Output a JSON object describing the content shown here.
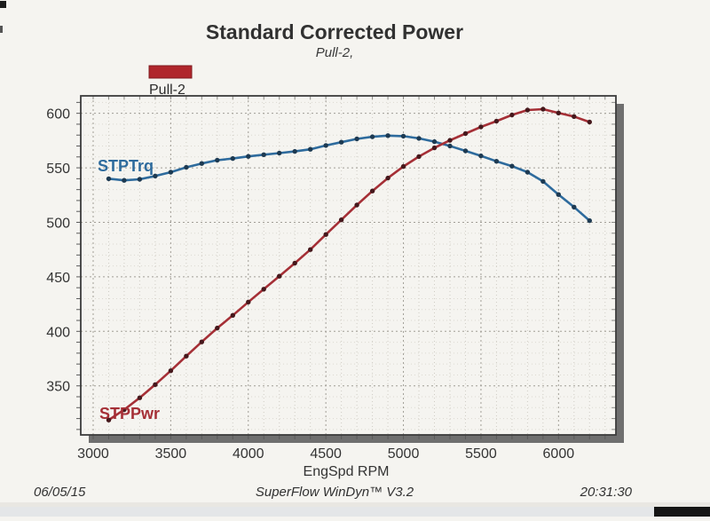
{
  "page": {
    "title": "Standard Corrected Power",
    "subtitle": "Pull-2,",
    "legend": {
      "label": "Pull-2",
      "swatch_color": "#b0262c"
    },
    "xlabel": "EngSpd RPM",
    "footer": {
      "date": "06/05/15",
      "app": "SuperFlow WinDyn™ V3.2",
      "time": "20:31:30"
    }
  },
  "chart_data": {
    "type": "line",
    "title": "Standard Corrected Power",
    "subtitle": "Pull-2,",
    "xlabel": "EngSpd RPM",
    "ylabel": "",
    "legend_entries": [
      "Pull-2"
    ],
    "legend_position": "top-left",
    "grid": "dotted major gridlines every 500 RPM / 50 units, faint minor gridlines every 100 RPM / 10 units",
    "x": [
      3100,
      3200,
      3300,
      3400,
      3500,
      3600,
      3700,
      3800,
      3900,
      4000,
      4100,
      4200,
      4300,
      4400,
      4500,
      4600,
      4700,
      4800,
      4900,
      5000,
      5100,
      5200,
      5300,
      5400,
      5500,
      5600,
      5700,
      5800,
      5900,
      6000,
      6100,
      6200
    ],
    "series": [
      {
        "name": "STPTrq",
        "color": "#2e6b9d",
        "marker_color": "#1d3a52",
        "values": [
          540.0,
          538.5,
          539.5,
          542.5,
          546.0,
          550.5,
          554.0,
          557.0,
          558.5,
          560.5,
          562.0,
          563.5,
          565.0,
          567.0,
          570.5,
          573.5,
          576.5,
          578.5,
          579.5,
          579.0,
          577.0,
          574.0,
          570.0,
          565.5,
          561.0,
          556.0,
          551.5,
          546.0,
          537.5,
          525.5,
          514.0,
          501.5
        ]
      },
      {
        "name": "STPPwr",
        "color": "#a52f36",
        "marker_color": "#46181c",
        "values": [
          318.7,
          328.1,
          339.0,
          351.2,
          363.9,
          377.3,
          390.3,
          403.0,
          414.7,
          426.9,
          438.7,
          450.6,
          462.5,
          475.0,
          488.8,
          502.3,
          515.9,
          528.7,
          540.6,
          551.2,
          560.3,
          568.3,
          575.2,
          581.4,
          587.5,
          592.8,
          598.5,
          603.0,
          603.8,
          600.3,
          597.0,
          592.0
        ]
      }
    ],
    "axes": {
      "xmin": 2920,
      "xmax": 6370,
      "ymin": 305,
      "ymax": 616,
      "x_major_ticks": [
        3000,
        3500,
        4000,
        4500,
        5000,
        5500,
        6000
      ],
      "x_minor_step": 100,
      "y_major_ticks": [
        350,
        400,
        450,
        500,
        550,
        600
      ],
      "y_minor_step": 10
    }
  }
}
